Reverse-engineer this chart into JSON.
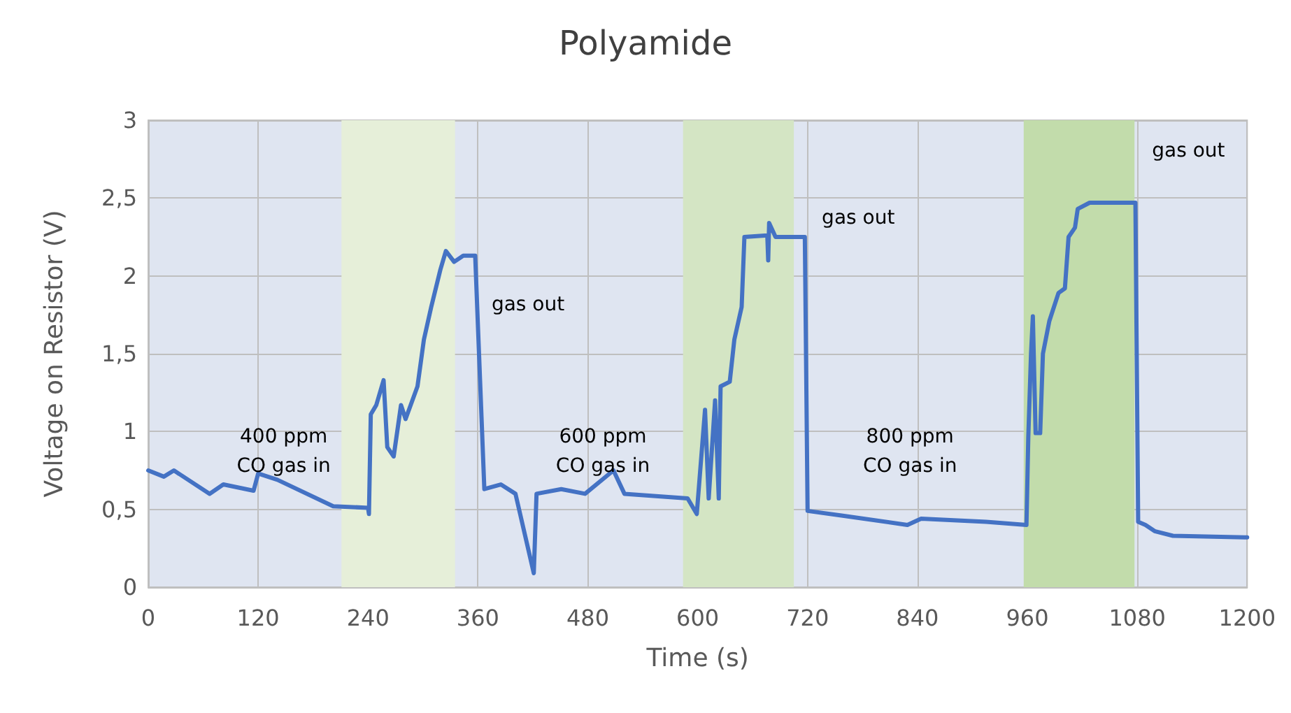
{
  "chart_data": {
    "type": "line",
    "title": "Polyamide",
    "xlabel": "Time (s)",
    "ylabel": "Voltage on Resistor (V)",
    "xlim": [
      0,
      1200
    ],
    "xticks": [
      0,
      120,
      240,
      360,
      480,
      600,
      720,
      840,
      960,
      1080,
      1200
    ],
    "ylim": [
      0,
      3
    ],
    "yticks": [
      0,
      {
        "value": 0.5,
        "label": "0,5"
      },
      1,
      {
        "value": 1.5,
        "label": "1,5"
      },
      2,
      {
        "value": 2.5,
        "label": "2,5"
      },
      3
    ],
    "grid": true,
    "marker": "none",
    "line_style": "solid",
    "bands": [
      {
        "axis": "x",
        "from": 211,
        "to": 335,
        "color": "#e6efd9"
      },
      {
        "axis": "x",
        "from": 584,
        "to": 705,
        "color": "#d4e5c4"
      },
      {
        "axis": "x",
        "from": 956,
        "to": 1077,
        "color": "#c2dcab"
      }
    ],
    "annotations": [
      "400 ppm\nCO gas in",
      "gas out",
      "600 ppm\nCO gas in",
      "gas out",
      "800 ppm\nCO gas in",
      "gas out"
    ],
    "series": [
      {
        "color": "#4472c4",
        "x": [
          0,
          17,
          28,
          67,
          82,
          115,
          120,
          141,
          202,
          240,
          241,
          243,
          249,
          257,
          261,
          268,
          276,
          281,
          294,
          301,
          309,
          319,
          325,
          334,
          344,
          357,
          367,
          385,
          401,
          421,
          424,
          451,
          477,
          508,
          520,
          589,
          599,
          608,
          612,
          619,
          623,
          625,
          635,
          640,
          648,
          651,
          676,
          677,
          678,
          685,
          717,
          720,
          757,
          829,
          844,
          915,
          959,
          961,
          964,
          966,
          969,
          974,
          977,
          984,
          994,
          1001,
          1005,
          1012,
          1015,
          1028,
          1078,
          1081,
          1089,
          1099,
          1119,
          1200
        ],
        "values": [
          0.75,
          0.71,
          0.75,
          0.6,
          0.66,
          0.62,
          0.73,
          0.69,
          0.52,
          0.51,
          0.47,
          1.11,
          1.17,
          1.33,
          0.9,
          0.84,
          1.17,
          1.08,
          1.29,
          1.59,
          1.8,
          2.04,
          2.16,
          2.09,
          2.13,
          2.13,
          0.63,
          0.66,
          0.6,
          0.09,
          0.6,
          0.63,
          0.6,
          0.75,
          0.6,
          0.57,
          0.47,
          1.14,
          0.57,
          1.2,
          0.57,
          1.29,
          1.32,
          1.59,
          1.8,
          2.25,
          2.26,
          2.1,
          2.34,
          2.25,
          2.25,
          0.49,
          0.46,
          0.4,
          0.44,
          0.42,
          0.4,
          0.96,
          1.5,
          1.74,
          0.99,
          0.99,
          1.5,
          1.71,
          1.89,
          1.92,
          2.25,
          2.31,
          2.43,
          2.47,
          2.47,
          0.42,
          0.4,
          0.36,
          0.33,
          0.32
        ]
      }
    ]
  }
}
